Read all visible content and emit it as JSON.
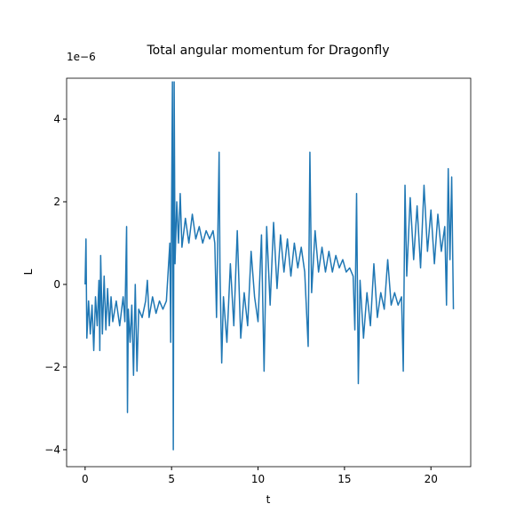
{
  "chart_data": {
    "type": "line",
    "title": "Total angular momentum for Dragonfly",
    "xlabel": "t",
    "ylabel": "L",
    "y_offset_text": "1e−6",
    "xlim": [
      -1.07,
      22.3
    ],
    "ylim": [
      -4.41,
      4.99
    ],
    "xticks": [
      0,
      5,
      10,
      15,
      20
    ],
    "yticks": [
      {
        "value": -4,
        "label": "−4"
      },
      {
        "value": -2,
        "label": "−2"
      },
      0,
      2,
      4
    ],
    "grid": false,
    "series": [
      {
        "color": "#1f77b4",
        "x": [
          0,
          0.05,
          0.1,
          0.2,
          0.3,
          0.4,
          0.5,
          0.6,
          0.7,
          0.8,
          0.85,
          0.9,
          1.0,
          1.1,
          1.2,
          1.3,
          1.4,
          1.5,
          1.6,
          1.8,
          2.0,
          2.2,
          2.3,
          2.4,
          2.45,
          2.5,
          2.6,
          2.7,
          2.8,
          2.9,
          3.0,
          3.1,
          3.3,
          3.5,
          3.6,
          3.7,
          3.9,
          4.1,
          4.3,
          4.5,
          4.7,
          4.9,
          4.95,
          5.05,
          5.1,
          5.15,
          5.2,
          5.3,
          5.4,
          5.5,
          5.6,
          5.8,
          6.0,
          6.2,
          6.4,
          6.6,
          6.8,
          7.0,
          7.2,
          7.4,
          7.5,
          7.6,
          7.75,
          7.8,
          7.9,
          8.0,
          8.2,
          8.4,
          8.6,
          8.8,
          9.0,
          9.2,
          9.4,
          9.6,
          9.8,
          10.0,
          10.2,
          10.35,
          10.5,
          10.7,
          10.9,
          11.1,
          11.3,
          11.5,
          11.7,
          11.9,
          12.1,
          12.3,
          12.5,
          12.7,
          12.9,
          13.0,
          13.1,
          13.3,
          13.5,
          13.7,
          13.9,
          14.1,
          14.3,
          14.5,
          14.7,
          14.9,
          15.1,
          15.3,
          15.5,
          15.6,
          15.7,
          15.8,
          15.9,
          16.1,
          16.3,
          16.5,
          16.7,
          16.9,
          17.1,
          17.3,
          17.5,
          17.7,
          17.9,
          18.1,
          18.3,
          18.4,
          18.5,
          18.6,
          18.8,
          19.0,
          19.2,
          19.4,
          19.6,
          19.8,
          20.0,
          20.2,
          20.4,
          20.6,
          20.8,
          20.9,
          21.0,
          21.1,
          21.2,
          21.3
        ],
        "values": [
          0,
          1.1,
          -1.3,
          -0.4,
          -1.2,
          -0.5,
          -1.6,
          -0.3,
          -1.0,
          0.1,
          -1.6,
          0.7,
          -1.2,
          0.2,
          -1.1,
          -0.1,
          -1.0,
          -0.3,
          -0.9,
          -0.4,
          -1.0,
          -0.3,
          -0.9,
          1.4,
          -3.1,
          -0.6,
          -1.4,
          -0.5,
          -2.2,
          0.0,
          -2.1,
          -0.6,
          -0.8,
          -0.4,
          0.1,
          -0.8,
          -0.3,
          -0.7,
          -0.4,
          -0.6,
          -0.4,
          1.0,
          -1.4,
          4.9,
          -4.0,
          4.9,
          0.5,
          2.0,
          1.0,
          2.2,
          0.9,
          1.6,
          1.0,
          1.7,
          1.1,
          1.4,
          1.0,
          1.3,
          1.1,
          1.3,
          1.0,
          -0.8,
          3.2,
          0.3,
          -1.9,
          -0.3,
          -1.4,
          0.5,
          -1.0,
          1.3,
          -1.3,
          -0.2,
          -1.0,
          0.8,
          -0.3,
          -0.9,
          1.2,
          -2.1,
          1.4,
          -0.5,
          1.5,
          -0.1,
          1.2,
          0.3,
          1.1,
          0.2,
          1.0,
          0.4,
          0.9,
          0.3,
          -1.5,
          3.2,
          -0.2,
          1.3,
          0.3,
          0.9,
          0.3,
          0.8,
          0.3,
          0.7,
          0.4,
          0.6,
          0.3,
          0.4,
          0.2,
          -1.1,
          2.2,
          -2.4,
          0.1,
          -1.3,
          -0.2,
          -1.0,
          0.5,
          -0.8,
          -0.2,
          -0.6,
          0.6,
          -0.5,
          -0.2,
          -0.5,
          -0.3,
          -2.1,
          2.4,
          0.2,
          2.1,
          0.6,
          1.9,
          0.4,
          2.4,
          0.8,
          1.8,
          0.5,
          1.7,
          0.8,
          1.4,
          -0.5,
          2.8,
          0.6,
          2.6,
          -0.6
        ]
      }
    ]
  }
}
